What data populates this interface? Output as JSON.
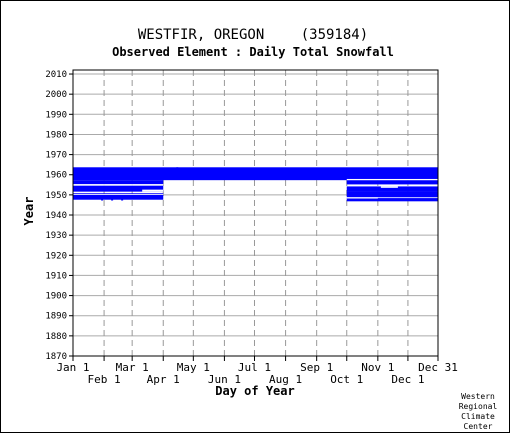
{
  "chart_data": {
    "type": "heatmap",
    "title": "WESTFIR, OREGON",
    "station_id": "(359184)",
    "subtitle": "Observed Element : Daily Total Snowfall",
    "xlabel": "Day of Year",
    "ylabel": "Year",
    "x_ticks_row1": [
      "Jan 1",
      "Mar 1",
      "May 1",
      "Jul 1",
      "Sep 1",
      "Nov 1",
      "Dec 31"
    ],
    "x_ticks_row2": [
      "Feb 1",
      "Apr 1",
      "Jun 1",
      "Aug 1",
      "Oct 1",
      "Dec 1"
    ],
    "x_tick_days_row1": [
      1,
      60,
      121,
      182,
      244,
      305,
      365
    ],
    "x_tick_days_row2": [
      32,
      91,
      152,
      213,
      274,
      335
    ],
    "ylim": [
      1870,
      2012
    ],
    "y_ticks": [
      1870,
      1880,
      1890,
      1900,
      1910,
      1920,
      1930,
      1940,
      1950,
      1960,
      1970,
      1980,
      1990,
      2000,
      2010
    ],
    "grid": true,
    "data_color": "#0000ff",
    "data_blocks": [
      {
        "day_start": 1,
        "day_end": 365,
        "year_start": 1957.3,
        "year_end": 1963.7
      },
      {
        "day_start": 1,
        "day_end": 91,
        "year_start": 1955.3,
        "year_end": 1957.3
      },
      {
        "day_start": 1,
        "day_end": 91,
        "year_start": 1951.6,
        "year_end": 1954.6
      },
      {
        "day_start": 1,
        "day_end": 91,
        "year_start": 1947.6,
        "year_end": 1950.0
      },
      {
        "day_start": 1,
        "day_end": 91,
        "year_start": 1950.0,
        "year_end": 1950.8
      },
      {
        "day_start": 274,
        "day_end": 365,
        "year_start": 1955.2,
        "year_end": 1957.3
      },
      {
        "day_start": 274,
        "day_end": 365,
        "year_start": 1951.7,
        "year_end": 1954.2
      },
      {
        "day_start": 274,
        "day_end": 365,
        "year_start": 1948.8,
        "year_end": 1951.7
      },
      {
        "day_start": 274,
        "day_end": 365,
        "year_start": 1946.8,
        "year_end": 1948.4
      }
    ],
    "white_gaps": [
      {
        "day_start": 1,
        "day_end": 91,
        "year_start": 1950.0,
        "year_end": 1950.4
      },
      {
        "day_start": 70,
        "day_end": 91,
        "year_start": 1951.6,
        "year_end": 1952.6
      },
      {
        "day_start": 308,
        "day_end": 325,
        "year_start": 1953.5,
        "year_end": 1954.2
      },
      {
        "day_start": 274,
        "day_end": 305,
        "year_start": 1948.2,
        "year_end": 1948.8
      },
      {
        "day_start": 274,
        "day_end": 365,
        "year_start": 1957.3,
        "year_end": 1957.9
      },
      {
        "day_start": 1,
        "day_end": 91,
        "year_start": 1954.6,
        "year_end": 1955.3
      }
    ],
    "specks": [
      {
        "day": 105,
        "year": 1963.2
      },
      {
        "day": 30,
        "year": 1947.7
      },
      {
        "day": 40,
        "year": 1947.7
      },
      {
        "day": 50,
        "year": 1947.7
      }
    ]
  },
  "credit": [
    "Western",
    "Regional",
    "Climate",
    "Center"
  ]
}
